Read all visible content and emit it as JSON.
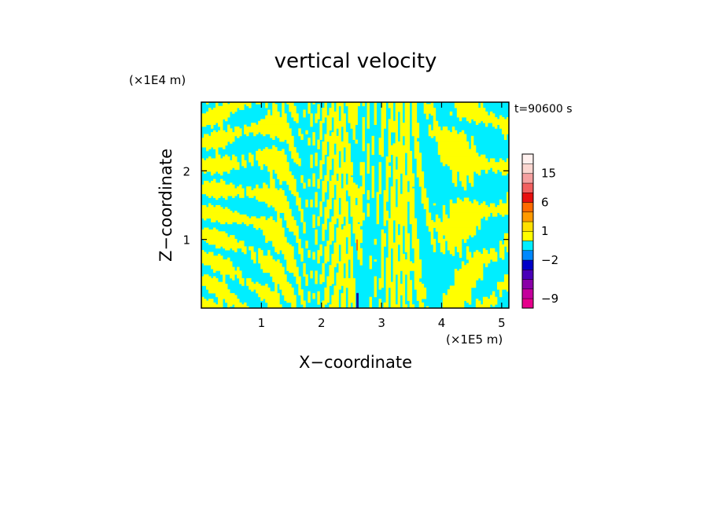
{
  "chart_data": {
    "type": "heatmap",
    "title": "vertical velocity",
    "xlabel": "X−coordinate",
    "ylabel": "Z−coordinate",
    "x_unit": "(×1E5 m)",
    "y_unit": "(×1E4 m)",
    "time_label": "t=90600 s",
    "xlim": [
      0,
      5.12
    ],
    "ylim": [
      0,
      3.0
    ],
    "x_ticks": [
      1,
      2,
      3,
      4,
      5
    ],
    "y_ticks": [
      1,
      2
    ],
    "x_tick_labels": [
      "1",
      "2",
      "3",
      "4",
      "5"
    ],
    "y_tick_labels": [
      "1",
      "2"
    ],
    "field_description_colors": {
      "positive_weak": "#ffff00",
      "negative_weak": "#00eeff",
      "strong_up": "#ff6a00",
      "strong_down": "#1a1aa0"
    },
    "colorbar": {
      "levels": [
        -12,
        -9,
        -6,
        -4,
        -3,
        -2,
        -1,
        0,
        1,
        2,
        4,
        6,
        9,
        12,
        15,
        18,
        22
      ],
      "colors": [
        "#e6008c",
        "#c4009c",
        "#8a00a8",
        "#4a00b8",
        "#0000c8",
        "#0088ff",
        "#00eeff",
        "#ffff00",
        "#ffe000",
        "#ff9a00",
        "#ff6a00",
        "#e81010",
        "#f26060",
        "#f5a0a0",
        "#fbd6d0",
        "#fff0ee"
      ],
      "tick_labels": [
        {
          "value": 15,
          "text": "15"
        },
        {
          "value": 6,
          "text": "6"
        },
        {
          "value": 1,
          "text": "1"
        },
        {
          "value": -2,
          "text": "−2"
        },
        {
          "value": -9,
          "text": "−9"
        }
      ]
    }
  }
}
